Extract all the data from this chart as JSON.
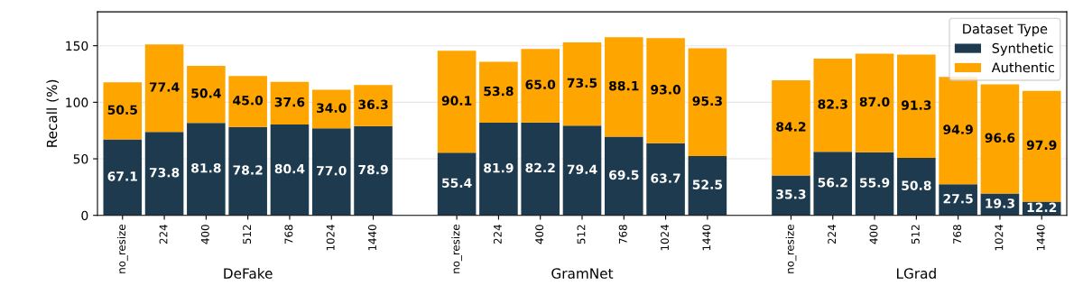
{
  "chart_data": {
    "type": "bar",
    "stacked": true,
    "ylabel": "Recall (%)",
    "legend_title": "Dataset Type",
    "categories": [
      "no_resize",
      "224",
      "400",
      "512",
      "768",
      "1024",
      "1440",
      null,
      "no_resize",
      "224",
      "400",
      "512",
      "768",
      "1024",
      "1440",
      null,
      "no_resize",
      "224",
      "400",
      "512",
      "768",
      "1024",
      "1440"
    ],
    "series": [
      {
        "name": "Synthetic",
        "color": "#1d3a4e",
        "values": [
          67.1,
          73.8,
          81.8,
          78.2,
          80.4,
          77.0,
          78.9,
          null,
          55.4,
          81.9,
          82.2,
          79.4,
          69.5,
          63.7,
          52.5,
          null,
          35.3,
          56.2,
          55.9,
          50.8,
          27.5,
          19.3,
          12.2
        ],
        "value_labels": [
          "67.1",
          "73.8",
          "81.8",
          "78.2",
          "80.4",
          "77.0",
          "78.9",
          null,
          "55.4",
          "81.9",
          "82.2",
          "79.4",
          "69.5",
          "63.7",
          "52.5",
          null,
          "35.3",
          "56.2",
          "55.9",
          "50.8",
          "27.5",
          "19.3",
          "12.2"
        ]
      },
      {
        "name": "Authentic",
        "color": "#ffa500",
        "values": [
          50.5,
          77.4,
          50.4,
          45.0,
          37.6,
          34.0,
          36.3,
          null,
          90.1,
          53.8,
          65.0,
          73.5,
          88.1,
          93.0,
          95.3,
          null,
          84.2,
          82.3,
          87.0,
          91.3,
          94.9,
          96.6,
          97.9
        ],
        "value_labels": [
          "50.5",
          "77.4",
          "50.4",
          "45.0",
          "37.6",
          "34.0",
          "36.3",
          null,
          "90.1",
          "53.8",
          "65.0",
          "73.5",
          "88.1",
          "93.0",
          "95.3",
          null,
          "84.2",
          "82.3",
          "87.0",
          "91.3",
          "94.9",
          "96.6",
          "97.9"
        ]
      }
    ],
    "annotations": [
      "DeFake",
      "GramNet",
      "LGrad"
    ],
    "ylim": [
      0,
      180
    ],
    "yticks": [
      0,
      50,
      100,
      150
    ],
    "grid": "y",
    "legend": "top right"
  }
}
